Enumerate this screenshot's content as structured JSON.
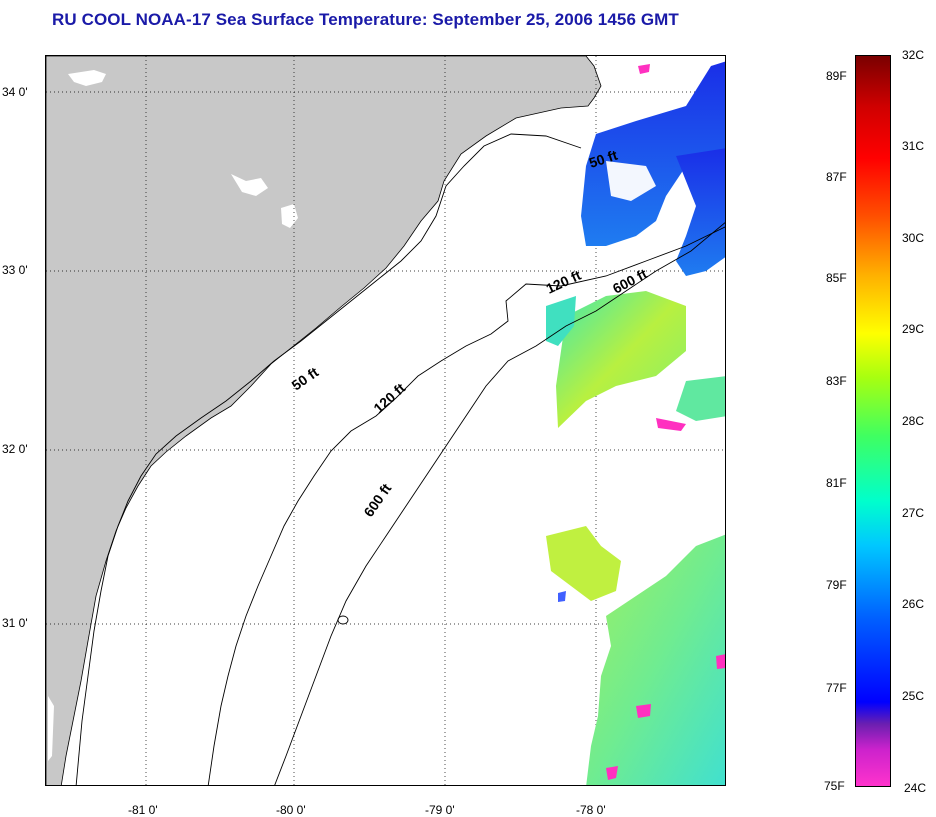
{
  "title": "RU COOL  NOAA-17  Sea Surface Temperature:  September 25, 2006 1456 GMT",
  "map": {
    "lat_ticks": [
      "34 0'",
      "33 0'",
      "32 0'",
      "31 0'"
    ],
    "lon_ticks": [
      "-81 0'",
      "-80 0'",
      "-79 0'",
      "-78 0'"
    ],
    "contour_labels": {
      "c50_north": "50 ft",
      "c50_south": "50 ft",
      "c120_north": "120 ft",
      "c120_south": "120 ft",
      "c600_north": "600 ft",
      "c600_south": "600 ft"
    },
    "colors": {
      "land": "#c8c8c8",
      "ocean": "#ffffff",
      "title": "#1a1aa8"
    }
  },
  "colorbar": {
    "fahrenheit_labels": [
      "89F",
      "87F",
      "85F",
      "83F",
      "81F",
      "79F",
      "77F",
      "75F"
    ],
    "celsius_labels": [
      "32C",
      "31C",
      "30C",
      "29C",
      "28C",
      "27C",
      "26C",
      "25C",
      "24C"
    ],
    "range_c": [
      24,
      32
    ]
  }
}
